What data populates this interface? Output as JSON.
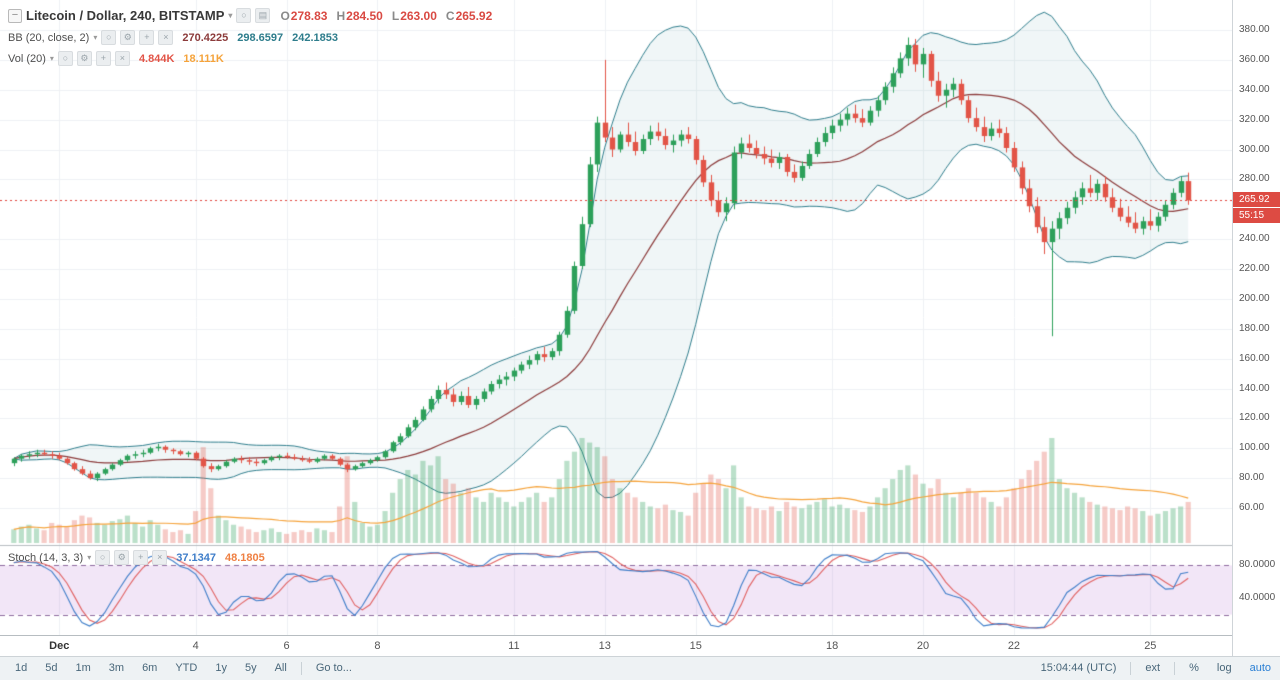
{
  "icons": {
    "collapse": "−",
    "caret": "▾",
    "circle": "○",
    "grid": "▤",
    "gear": "⚙",
    "plus": "+",
    "close": "×"
  },
  "header": {
    "symbol_title": "Litecoin / Dollar, 240, BITSTAMP",
    "ohlc": [
      {
        "label": "O",
        "value": "278.83"
      },
      {
        "label": "H",
        "value": "284.50"
      },
      {
        "label": "L",
        "value": "263.00"
      },
      {
        "label": "C",
        "value": "265.92"
      }
    ],
    "ohlc_color": "#d94a43",
    "bb": {
      "name": "BB (20, close, 2)",
      "values": [
        {
          "text": "270.4225",
          "color": "#8c3b3b"
        },
        {
          "text": "298.6597",
          "color": "#2e7d8c"
        },
        {
          "text": "242.1853",
          "color": "#2e7d8c"
        }
      ]
    },
    "vol": {
      "name": "Vol (20)",
      "values": [
        {
          "text": "4.844K",
          "color": "#e25447"
        },
        {
          "text": "18.111K",
          "color": "#f5a33b"
        }
      ]
    },
    "stoch": {
      "name": "Stoch (14, 3, 3)",
      "values": [
        {
          "text": "37.1347",
          "color": "#3f7ec9"
        },
        {
          "text": "48.1805",
          "color": "#ef8043"
        }
      ]
    }
  },
  "price_axis": {
    "ticks": [
      "380.00",
      "360.00",
      "340.00",
      "320.00",
      "300.00",
      "280.00",
      "240.00",
      "220.00",
      "200.00",
      "180.00",
      "160.00",
      "140.00",
      "120.00",
      "100.00",
      "80.00",
      "60.00"
    ],
    "current_price": "265.92",
    "countdown": "55:15"
  },
  "stoch_axis": {
    "ticks": [
      {
        "value": 80,
        "label": "80.0000"
      },
      {
        "value": 40,
        "label": "40.0000"
      }
    ]
  },
  "time_axis": [
    {
      "label": "Dec",
      "day": 1,
      "bold": true
    },
    {
      "label": "4",
      "day": 4
    },
    {
      "label": "6",
      "day": 6
    },
    {
      "label": "8",
      "day": 8
    },
    {
      "label": "11",
      "day": 11
    },
    {
      "label": "13",
      "day": 13
    },
    {
      "label": "15",
      "day": 15
    },
    {
      "label": "18",
      "day": 18
    },
    {
      "label": "20",
      "day": 20
    },
    {
      "label": "22",
      "day": 22
    },
    {
      "label": "25",
      "day": 25
    }
  ],
  "toolbar": {
    "ranges": [
      "1d",
      "5d",
      "1m",
      "3m",
      "6m",
      "YTD",
      "1y",
      "5y",
      "All"
    ],
    "goto_label": "Go to...",
    "clock": "15:04:44 (UTC)",
    "ext_label": "ext",
    "percent_label": "%",
    "log_label": "log",
    "auto_label": "auto"
  },
  "chart_data": {
    "type": "candlestick",
    "ylim": [
      60,
      380
    ],
    "candles_per_day": 6,
    "december_start_index": 6,
    "stoch_levels": [
      80,
      20
    ],
    "indicators": {
      "bollinger": {
        "length": 20,
        "mult": 2
      },
      "vol_ma_length": 20,
      "stoch": {
        "k": 14,
        "d": 3,
        "smooth": 3
      }
    },
    "colors": {
      "up": "#2da05a",
      "down": "#e25447",
      "bb_band": "#2e7d8c",
      "bb_mid": "#8c3b3b",
      "bb_fill": "rgba(46,125,140,0.07)",
      "vol_up": "rgba(45,160,90,0.32)",
      "vol_down": "rgba(226,84,71,0.30)",
      "vol_ma": "#f5a33b",
      "stoch_k": "#3f7ec9",
      "stoch_d": "#e06060",
      "stoch_fill": "rgba(170,90,200,0.15)",
      "stoch_dash": "#8d6a9e",
      "price_line": "#e0443c",
      "grid": "#eef1f4"
    },
    "candles": [
      [
        90,
        94,
        88,
        93,
        15
      ],
      [
        93,
        96,
        91,
        95,
        18
      ],
      [
        95,
        98,
        93,
        96,
        20
      ],
      [
        96,
        99,
        94,
        97,
        16
      ],
      [
        97,
        99,
        95,
        96,
        14
      ],
      [
        96,
        98,
        93,
        95,
        22
      ],
      [
        95,
        97,
        92,
        93,
        20
      ],
      [
        93,
        94,
        89,
        90,
        18
      ],
      [
        90,
        91,
        85,
        86,
        25
      ],
      [
        86,
        88,
        82,
        83,
        30
      ],
      [
        83,
        85,
        79,
        80,
        28
      ],
      [
        80,
        84,
        78,
        83,
        22
      ],
      [
        83,
        87,
        82,
        86,
        20
      ],
      [
        86,
        90,
        85,
        89,
        24
      ],
      [
        89,
        93,
        88,
        92,
        26
      ],
      [
        92,
        96,
        91,
        95,
        30
      ],
      [
        95,
        98,
        93,
        96,
        22
      ],
      [
        96,
        99,
        94,
        97,
        18
      ],
      [
        97,
        101,
        96,
        100,
        25
      ],
      [
        100,
        103,
        98,
        101,
        20
      ],
      [
        101,
        102,
        97,
        99,
        15
      ],
      [
        99,
        100,
        96,
        98,
        12
      ],
      [
        98,
        99,
        95,
        96,
        14
      ],
      [
        96,
        98,
        94,
        97,
        10
      ],
      [
        97,
        98,
        92,
        93,
        35
      ],
      [
        93,
        94,
        87,
        88,
        105
      ],
      [
        88,
        90,
        84,
        86,
        60
      ],
      [
        86,
        89,
        85,
        88,
        30
      ],
      [
        88,
        92,
        87,
        91,
        25
      ],
      [
        91,
        94,
        90,
        93,
        20
      ],
      [
        93,
        95,
        90,
        92,
        18
      ],
      [
        92,
        94,
        89,
        91,
        15
      ],
      [
        91,
        93,
        88,
        90,
        12
      ],
      [
        90,
        93,
        89,
        92,
        14
      ],
      [
        92,
        95,
        91,
        94,
        16
      ],
      [
        94,
        96,
        92,
        95,
        12
      ],
      [
        95,
        97,
        93,
        94,
        10
      ],
      [
        94,
        96,
        92,
        93,
        12
      ],
      [
        93,
        95,
        91,
        92,
        14
      ],
      [
        92,
        94,
        90,
        91,
        12
      ],
      [
        91,
        94,
        90,
        93,
        16
      ],
      [
        93,
        96,
        92,
        95,
        14
      ],
      [
        95,
        96,
        92,
        93,
        12
      ],
      [
        93,
        94,
        88,
        89,
        40
      ],
      [
        89,
        90,
        84,
        86,
        95
      ],
      [
        86,
        89,
        85,
        88,
        45
      ],
      [
        88,
        91,
        87,
        90,
        22
      ],
      [
        90,
        93,
        89,
        92,
        18
      ],
      [
        92,
        95,
        91,
        94,
        20
      ],
      [
        94,
        99,
        93,
        98,
        35
      ],
      [
        98,
        105,
        97,
        104,
        55
      ],
      [
        104,
        110,
        102,
        108,
        70
      ],
      [
        108,
        116,
        107,
        114,
        80
      ],
      [
        114,
        121,
        112,
        119,
        75
      ],
      [
        119,
        128,
        118,
        126,
        90
      ],
      [
        126,
        135,
        124,
        133,
        85
      ],
      [
        133,
        142,
        130,
        139,
        95
      ],
      [
        139,
        144,
        133,
        136,
        70
      ],
      [
        136,
        140,
        128,
        131,
        65
      ],
      [
        131,
        138,
        129,
        135,
        55
      ],
      [
        135,
        141,
        127,
        129,
        60
      ],
      [
        129,
        135,
        126,
        133,
        50
      ],
      [
        133,
        140,
        131,
        138,
        45
      ],
      [
        138,
        145,
        136,
        143,
        55
      ],
      [
        143,
        149,
        140,
        146,
        50
      ],
      [
        146,
        151,
        142,
        148,
        45
      ],
      [
        148,
        154,
        145,
        152,
        40
      ],
      [
        152,
        158,
        150,
        156,
        45
      ],
      [
        156,
        162,
        153,
        159,
        50
      ],
      [
        159,
        165,
        156,
        163,
        55
      ],
      [
        163,
        168,
        158,
        161,
        45
      ],
      [
        161,
        167,
        159,
        165,
        50
      ],
      [
        165,
        178,
        162,
        176,
        70
      ],
      [
        176,
        195,
        174,
        192,
        90
      ],
      [
        192,
        225,
        190,
        222,
        100
      ],
      [
        222,
        255,
        220,
        250,
        115
      ],
      [
        250,
        295,
        248,
        290,
        110
      ],
      [
        290,
        322,
        285,
        318,
        105
      ],
      [
        318,
        360,
        305,
        308,
        95
      ],
      [
        308,
        315,
        295,
        300,
        70
      ],
      [
        300,
        312,
        298,
        310,
        60
      ],
      [
        310,
        318,
        302,
        305,
        55
      ],
      [
        305,
        312,
        296,
        299,
        50
      ],
      [
        299,
        310,
        297,
        307,
        45
      ],
      [
        307,
        316,
        303,
        312,
        40
      ],
      [
        312,
        318,
        306,
        309,
        38
      ],
      [
        309,
        314,
        300,
        303,
        42
      ],
      [
        303,
        310,
        298,
        306,
        36
      ],
      [
        306,
        313,
        302,
        310,
        34
      ],
      [
        310,
        315,
        304,
        307,
        30
      ],
      [
        307,
        309,
        290,
        293,
        55
      ],
      [
        293,
        296,
        275,
        278,
        65
      ],
      [
        278,
        283,
        262,
        266,
        75
      ],
      [
        266,
        272,
        255,
        258,
        70
      ],
      [
        258,
        268,
        252,
        264,
        60
      ],
      [
        264,
        302,
        260,
        298,
        85
      ],
      [
        298,
        308,
        294,
        304,
        50
      ],
      [
        304,
        310,
        298,
        301,
        40
      ],
      [
        301,
        306,
        294,
        297,
        38
      ],
      [
        297,
        302,
        290,
        294,
        36
      ],
      [
        294,
        300,
        288,
        291,
        40
      ],
      [
        291,
        298,
        287,
        295,
        35
      ],
      [
        295,
        297,
        282,
        285,
        45
      ],
      [
        285,
        290,
        278,
        281,
        40
      ],
      [
        281,
        292,
        279,
        289,
        38
      ],
      [
        289,
        300,
        287,
        297,
        42
      ],
      [
        297,
        308,
        295,
        305,
        45
      ],
      [
        305,
        315,
        302,
        311,
        48
      ],
      [
        311,
        320,
        307,
        316,
        40
      ],
      [
        316,
        324,
        312,
        320,
        42
      ],
      [
        320,
        328,
        316,
        324,
        38
      ],
      [
        324,
        330,
        318,
        321,
        36
      ],
      [
        321,
        327,
        315,
        318,
        34
      ],
      [
        318,
        329,
        316,
        326,
        40
      ],
      [
        326,
        336,
        322,
        333,
        50
      ],
      [
        333,
        345,
        330,
        342,
        60
      ],
      [
        342,
        355,
        338,
        351,
        70
      ],
      [
        351,
        365,
        348,
        361,
        80
      ],
      [
        361,
        375,
        356,
        370,
        85
      ],
      [
        370,
        374,
        352,
        357,
        75
      ],
      [
        357,
        368,
        348,
        364,
        65
      ],
      [
        364,
        366,
        342,
        346,
        60
      ],
      [
        346,
        352,
        332,
        336,
        70
      ],
      [
        336,
        344,
        328,
        340,
        55
      ],
      [
        340,
        348,
        335,
        344,
        50
      ],
      [
        344,
        347,
        330,
        333,
        55
      ],
      [
        333,
        336,
        318,
        321,
        60
      ],
      [
        321,
        328,
        312,
        315,
        55
      ],
      [
        315,
        322,
        305,
        309,
        50
      ],
      [
        309,
        318,
        306,
        314,
        45
      ],
      [
        314,
        320,
        308,
        311,
        40
      ],
      [
        311,
        315,
        298,
        301,
        50
      ],
      [
        301,
        305,
        285,
        288,
        60
      ],
      [
        288,
        292,
        270,
        274,
        70
      ],
      [
        274,
        280,
        258,
        262,
        80
      ],
      [
        262,
        268,
        244,
        248,
        90
      ],
      [
        248,
        255,
        230,
        238,
        100
      ],
      [
        238,
        252,
        175,
        247,
        115
      ],
      [
        247,
        258,
        240,
        254,
        70
      ],
      [
        254,
        265,
        250,
        261,
        60
      ],
      [
        261,
        272,
        257,
        268,
        55
      ],
      [
        268,
        278,
        263,
        274,
        50
      ],
      [
        274,
        283,
        268,
        271,
        45
      ],
      [
        271,
        280,
        266,
        277,
        42
      ],
      [
        277,
        282,
        265,
        268,
        40
      ],
      [
        268,
        274,
        258,
        261,
        38
      ],
      [
        261,
        267,
        252,
        255,
        36
      ],
      [
        255,
        262,
        248,
        251,
        40
      ],
      [
        251,
        258,
        244,
        247,
        38
      ],
      [
        247,
        255,
        243,
        252,
        35
      ],
      [
        252,
        260,
        246,
        249,
        30
      ],
      [
        249,
        258,
        245,
        255,
        32
      ],
      [
        255,
        266,
        252,
        263,
        35
      ],
      [
        263,
        274,
        260,
        271,
        38
      ],
      [
        271,
        282,
        268,
        278.83,
        40
      ],
      [
        278.83,
        284.5,
        263,
        265.92,
        45
      ]
    ]
  }
}
